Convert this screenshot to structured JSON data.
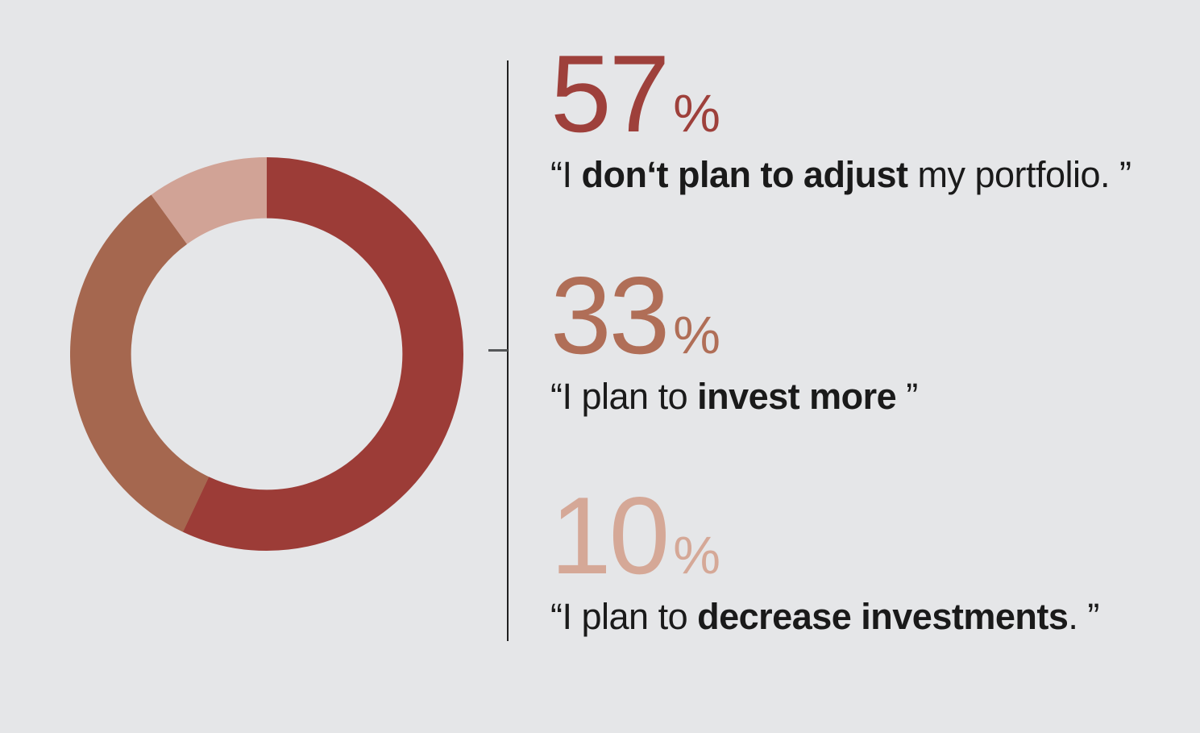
{
  "background_color": "#e5e6e8",
  "separator": {
    "line_color": "#212121",
    "tick_color": "#555759"
  },
  "chart_data": {
    "type": "pie",
    "subtype": "donut",
    "title": "",
    "start_angle": "12 o'clock",
    "direction": "clockwise",
    "inner_radius_ratio": 0.69,
    "legend_position": "right-callouts",
    "categories": [
      "I don‘t plan to adjust my portfolio.",
      "I plan to invest more",
      "I plan to decrease investments."
    ],
    "values": [
      57,
      33,
      10
    ],
    "segments": [
      {
        "label": "I don‘t plan to adjust my portfolio.",
        "value": 57,
        "color": "#9c3c37"
      },
      {
        "label": "I plan to invest more",
        "value": 33,
        "color": "#a5674f"
      },
      {
        "label": "I plan to decrease investments.",
        "value": 10,
        "color": "#d1a396"
      }
    ]
  },
  "callouts": [
    {
      "value": "57",
      "percent_sign": "%",
      "number_color": "#9e403b",
      "quote": {
        "prefix": "“I ",
        "bold": "don‘t plan to adjust",
        "suffix": " my portfolio. ”"
      }
    },
    {
      "value": "33",
      "percent_sign": "%",
      "number_color": "#b06e57",
      "quote": {
        "prefix": "“I plan to ",
        "bold": "invest more",
        "suffix": " ”"
      }
    },
    {
      "value": "10",
      "percent_sign": "%",
      "number_color": "#d5a897",
      "quote": {
        "prefix": "“I plan to ",
        "bold": "decrease investments",
        "suffix": ". ”"
      }
    }
  ]
}
